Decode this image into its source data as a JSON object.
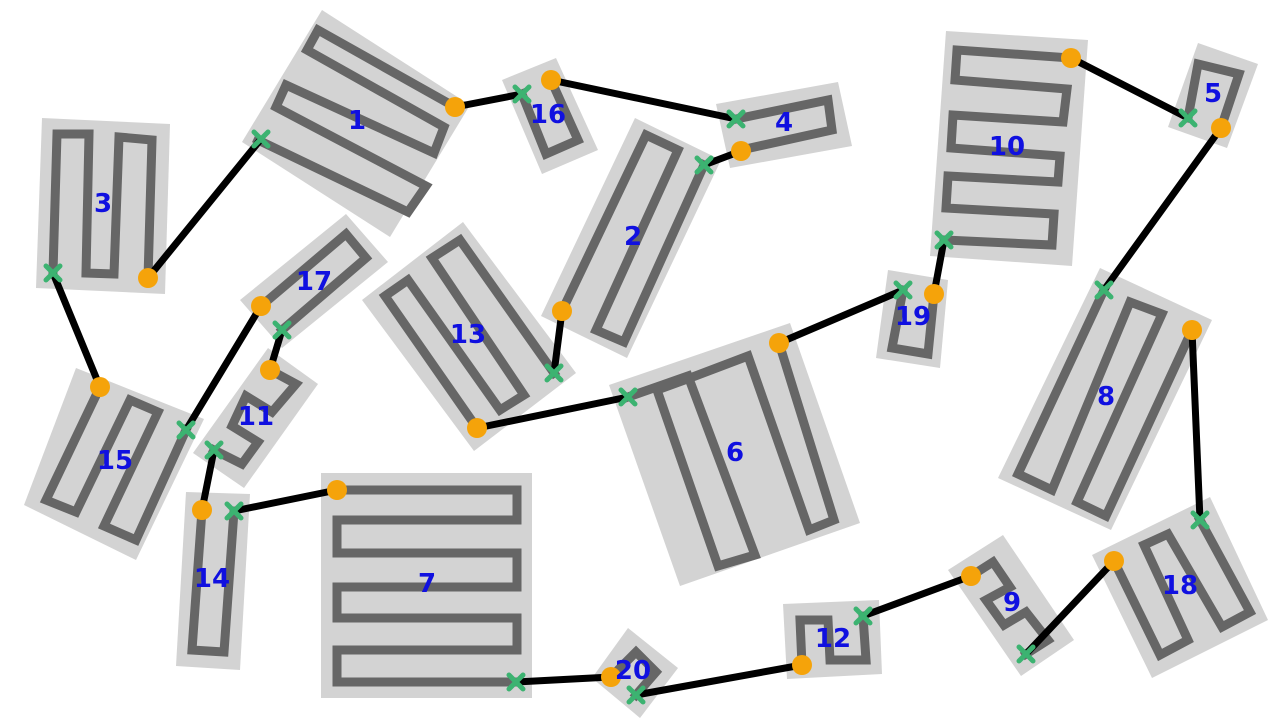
{
  "blocks": [
    {
      "id": "1",
      "label": "1"
    },
    {
      "id": "2",
      "label": "2"
    },
    {
      "id": "3",
      "label": "3"
    },
    {
      "id": "4",
      "label": "4"
    },
    {
      "id": "5",
      "label": "5"
    },
    {
      "id": "6",
      "label": "6"
    },
    {
      "id": "7",
      "label": "7"
    },
    {
      "id": "8",
      "label": "8"
    },
    {
      "id": "9",
      "label": "9"
    },
    {
      "id": "10",
      "label": "10"
    },
    {
      "id": "11",
      "label": "11"
    },
    {
      "id": "12",
      "label": "12"
    },
    {
      "id": "13",
      "label": "13"
    },
    {
      "id": "14",
      "label": "14"
    },
    {
      "id": "15",
      "label": "15"
    },
    {
      "id": "16",
      "label": "16"
    },
    {
      "id": "17",
      "label": "17"
    },
    {
      "id": "18",
      "label": "18"
    },
    {
      "id": "19",
      "label": "19"
    },
    {
      "id": "20",
      "label": "20"
    }
  ],
  "connections": [
    {
      "from": "3",
      "to": "1"
    },
    {
      "from": "1",
      "to": "16"
    },
    {
      "from": "16",
      "to": "4"
    },
    {
      "from": "4",
      "to": "2"
    },
    {
      "from": "2",
      "to": "13"
    },
    {
      "from": "13",
      "to": "6"
    },
    {
      "from": "6",
      "to": "19"
    },
    {
      "from": "19",
      "to": "10"
    },
    {
      "from": "10",
      "to": "5"
    },
    {
      "from": "5",
      "to": "8"
    },
    {
      "from": "8",
      "to": "18"
    },
    {
      "from": "18",
      "to": "9"
    },
    {
      "from": "9",
      "to": "12"
    },
    {
      "from": "12",
      "to": "20"
    },
    {
      "from": "20",
      "to": "7"
    },
    {
      "from": "7",
      "to": "14"
    },
    {
      "from": "14",
      "to": "11"
    },
    {
      "from": "11",
      "to": "17"
    },
    {
      "from": "17",
      "to": "15"
    },
    {
      "from": "15",
      "to": "3"
    }
  ],
  "colors": {
    "block_fill": "#d3d3d3",
    "serpentine": "#666666",
    "wire": "#000000",
    "start_pin": "#f5a30a",
    "end_pin": "#3cb371",
    "label": "#1010e0"
  },
  "icons": {
    "start_pin": "orange-circle",
    "end_pin": "green-x"
  }
}
